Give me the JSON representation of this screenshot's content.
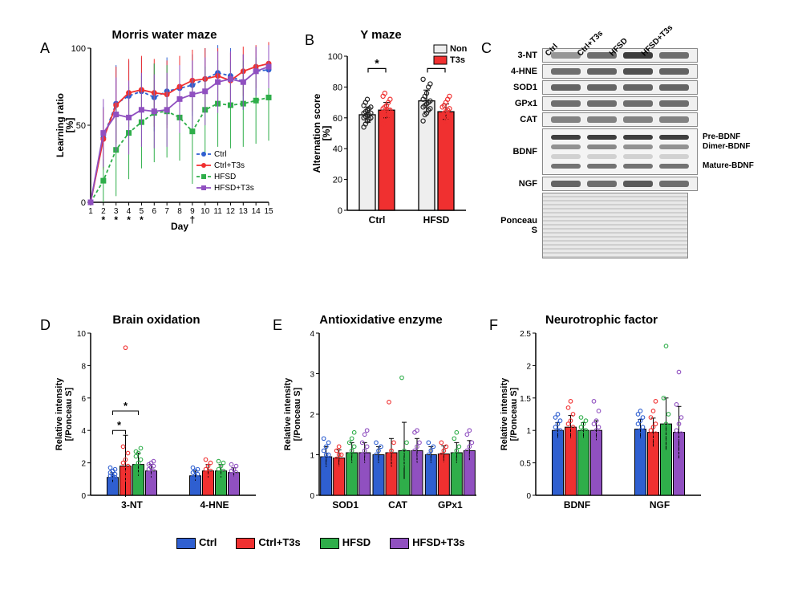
{
  "colors": {
    "Ctrl": "#2f5fd0",
    "Ctrl+T3s": "#f03030",
    "HFSD": "#2fae4a",
    "HFSD+T3s": "#9050c0",
    "Non": "#222222",
    "T3s": "#f03030",
    "axis": "#000000",
    "errorbar": "#000000",
    "grid": "#ffffff"
  },
  "panelA": {
    "label": "A",
    "title": "Morris water maze",
    "xlabel": "Day",
    "ylabel": "Learning ratio\n[%]",
    "xlim": [
      1,
      15
    ],
    "ylim": [
      0,
      100
    ],
    "ytick_step": 50,
    "xticks": [
      1,
      2,
      3,
      4,
      5,
      6,
      7,
      8,
      9,
      10,
      11,
      12,
      13,
      14,
      15
    ],
    "markers": {
      "Ctrl": "circle",
      "Ctrl+T3s": "circle",
      "HFSD": "square",
      "HFSD+T3s": "square"
    },
    "line_dash": {
      "Ctrl": "4,3",
      "Ctrl+T3s": "none",
      "HFSD": "4,3",
      "HFSD+T3s": "none"
    },
    "series": {
      "Ctrl": [
        0,
        42,
        64,
        69,
        72,
        68,
        72,
        74,
        76,
        80,
        84,
        82,
        78,
        85,
        86
      ],
      "Ctrl+T3s": [
        0,
        41,
        63,
        71,
        73,
        71,
        70,
        75,
        79,
        80,
        82,
        79,
        85,
        88,
        90
      ],
      "HFSD": [
        0,
        14,
        34,
        45,
        52,
        58,
        59,
        55,
        46,
        60,
        64,
        63,
        64,
        66,
        68
      ],
      "HFSD+T3s": [
        0,
        45,
        57,
        55,
        60,
        59,
        60,
        67,
        70,
        72,
        78,
        80,
        78,
        85,
        88
      ]
    },
    "err": {
      "Ctrl": [
        0,
        20,
        25,
        23,
        22,
        22,
        22,
        20,
        20,
        20,
        18,
        18,
        18,
        16,
        16
      ],
      "Ctrl+T3s": [
        0,
        20,
        25,
        22,
        22,
        22,
        22,
        20,
        20,
        20,
        18,
        18,
        16,
        14,
        14
      ],
      "HFSD": [
        0,
        14,
        30,
        30,
        30,
        32,
        30,
        28,
        34,
        28,
        28,
        28,
        28,
        28,
        28
      ],
      "HFSD+T3s": [
        0,
        22,
        24,
        24,
        24,
        24,
        24,
        22,
        22,
        22,
        20,
        18,
        18,
        16,
        14
      ]
    },
    "sig_marks": [
      {
        "x": 2,
        "text": "*"
      },
      {
        "x": 3,
        "text": "*"
      },
      {
        "x": 4,
        "text": "*"
      },
      {
        "x": 5,
        "text": "*"
      },
      {
        "x": 9,
        "text": "†"
      }
    ],
    "legend": [
      "Ctrl",
      "Ctrl+T3s",
      "HFSD",
      "HFSD+T3s"
    ]
  },
  "panelB": {
    "label": "B",
    "title": "Y maze",
    "ylabel": "Alternation score\n[%]",
    "ylim": [
      0,
      100
    ],
    "ytick_step": 20,
    "groups": [
      "Ctrl",
      "HFSD"
    ],
    "subgroups": [
      "Non",
      "T3s"
    ],
    "bar_colors": {
      "Non": "#eeeeee",
      "T3s": "#f03030"
    },
    "point_colors": {
      "Non": "#222222",
      "T3s": "#f03030"
    },
    "bar_border": "#000000",
    "values": {
      "Ctrl": {
        "Non": 62,
        "T3s": 65
      },
      "HFSD": {
        "Non": 71,
        "T3s": 64
      }
    },
    "err": {
      "Ctrl": {
        "Non": 5,
        "T3s": 5
      },
      "HFSD": {
        "Non": 7,
        "T3s": 5
      }
    },
    "scatter": {
      "Ctrl": {
        "Non": [
          54,
          56,
          58,
          59,
          60,
          60,
          61,
          62,
          62,
          63,
          63,
          64,
          65,
          66,
          67,
          68,
          70,
          72
        ],
        "T3s": [
          56,
          58,
          60,
          61,
          62,
          63,
          63,
          64,
          65,
          65,
          66,
          67,
          68,
          70,
          72,
          74,
          76
        ]
      },
      "HFSD": {
        "Non": [
          58,
          62,
          63,
          65,
          66,
          67,
          68,
          69,
          70,
          71,
          72,
          74,
          76,
          80,
          82,
          85
        ],
        "T3s": [
          54,
          57,
          58,
          60,
          61,
          62,
          63,
          64,
          65,
          66,
          67,
          68,
          70,
          72,
          74
        ]
      }
    },
    "sig": [
      {
        "from": "Ctrl.Non",
        "to": "Ctrl.T3s",
        "text": "*"
      },
      {
        "from": "HFSD.Non",
        "to": "HFSD.T3s",
        "text": "*"
      }
    ]
  },
  "panelC": {
    "label": "C",
    "lanes": [
      "Ctrl",
      "Ctrl+T3s",
      "HFSD",
      "HFSD+T3s"
    ],
    "rows": [
      {
        "name": "3-NT",
        "intensity": [
          0.35,
          0.55,
          0.8,
          0.55
        ]
      },
      {
        "name": "4-HNE",
        "intensity": [
          0.55,
          0.6,
          0.7,
          0.6
        ]
      },
      {
        "name": "SOD1",
        "intensity": [
          0.6,
          0.6,
          0.6,
          0.6
        ]
      },
      {
        "name": "GPx1",
        "intensity": [
          0.55,
          0.55,
          0.55,
          0.55
        ]
      },
      {
        "name": "CAT",
        "intensity": [
          0.45,
          0.45,
          0.45,
          0.45
        ]
      }
    ],
    "bdnf": {
      "name": "BDNF",
      "bands": [
        {
          "label": "Pre-BDNF",
          "intensity": [
            0.8,
            0.8,
            0.8,
            0.8
          ]
        },
        {
          "label": "Dimer-BDNF",
          "intensity": [
            0.4,
            0.45,
            0.4,
            0.4
          ]
        },
        {
          "label": "",
          "intensity": [
            0.1,
            0.1,
            0.1,
            0.1
          ]
        },
        {
          "label": "Mature-BDNF",
          "intensity": [
            0.55,
            0.55,
            0.55,
            0.55
          ]
        }
      ]
    },
    "ngf": {
      "name": "NGF",
      "intensity": [
        0.6,
        0.55,
        0.65,
        0.55
      ]
    },
    "loading": "Ponceau S"
  },
  "barPanels": {
    "D": {
      "title": "Brain oxidation",
      "ylabel": "Relative intensity\n[/Ponceau S]",
      "ylim": [
        0,
        10
      ],
      "yticks": [
        0,
        2,
        4,
        6,
        8,
        10
      ],
      "groups": [
        "3-NT",
        "4-HNE"
      ],
      "values": {
        "3-NT": {
          "Ctrl": 1.1,
          "Ctrl+T3s": 1.8,
          "HFSD": 1.9,
          "HFSD+T3s": 1.5
        },
        "4-HNE": {
          "Ctrl": 1.2,
          "Ctrl+T3s": 1.5,
          "HFSD": 1.5,
          "HFSD+T3s": 1.4
        }
      },
      "err": {
        "3-NT": {
          "Ctrl": 0.3,
          "Ctrl+T3s": 1.9,
          "HFSD": 0.7,
          "HFSD+T3s": 0.4
        },
        "4-HNE": {
          "Ctrl": 0.3,
          "Ctrl+T3s": 0.4,
          "HFSD": 0.4,
          "HFSD+T3s": 0.3
        }
      },
      "scatter": {
        "3-NT": {
          "Ctrl": [
            0.8,
            0.9,
            1.0,
            1.0,
            1.1,
            1.1,
            1.2,
            1.2,
            1.3,
            1.4,
            1.5,
            1.6,
            1.7
          ],
          "Ctrl+T3s": [
            0.9,
            1.0,
            1.1,
            1.2,
            1.3,
            1.4,
            1.5,
            1.6,
            1.8,
            2.0,
            2.2,
            2.6,
            3.0,
            9.1
          ],
          "HFSD": [
            1.1,
            1.2,
            1.3,
            1.4,
            1.5,
            1.6,
            1.8,
            2.0,
            2.2,
            2.4,
            2.6,
            2.9,
            2.7
          ],
          "HFSD+T3s": [
            1.0,
            1.1,
            1.2,
            1.3,
            1.4,
            1.5,
            1.6,
            1.7,
            1.8,
            1.9,
            2.0,
            2.1
          ]
        },
        "4-HNE": {
          "Ctrl": [
            0.8,
            0.9,
            1.0,
            1.1,
            1.2,
            1.3,
            1.4,
            1.5,
            1.6,
            1.7
          ],
          "Ctrl+T3s": [
            1.0,
            1.1,
            1.2,
            1.3,
            1.4,
            1.5,
            1.6,
            1.8,
            2.0,
            2.2
          ],
          "HFSD": [
            1.0,
            1.1,
            1.2,
            1.3,
            1.4,
            1.5,
            1.6,
            1.8,
            2.0,
            2.1
          ],
          "HFSD+T3s": [
            0.9,
            1.0,
            1.1,
            1.2,
            1.3,
            1.4,
            1.5,
            1.6,
            1.8,
            1.9
          ]
        }
      },
      "sig": [
        {
          "group": "3-NT",
          "from": "Ctrl",
          "to": "Ctrl+T3s",
          "text": "*",
          "y": 4.0
        },
        {
          "group": "3-NT",
          "from": "Ctrl",
          "to": "HFSD",
          "text": "*",
          "y": 5.2
        }
      ]
    },
    "E": {
      "title": "Antioxidative enzyme",
      "ylabel": "Relative intensity\n[/Ponceau S]",
      "ylim": [
        0,
        4
      ],
      "yticks": [
        0,
        1,
        2,
        3,
        4
      ],
      "groups": [
        "SOD1",
        "CAT",
        "GPx1"
      ],
      "values": {
        "SOD1": {
          "Ctrl": 0.95,
          "Ctrl+T3s": 0.92,
          "HFSD": 1.05,
          "HFSD+T3s": 1.05
        },
        "CAT": {
          "Ctrl": 1.0,
          "Ctrl+T3s": 1.05,
          "HFSD": 1.1,
          "HFSD+T3s": 1.1
        },
        "GPx1": {
          "Ctrl": 1.0,
          "Ctrl+T3s": 1.02,
          "HFSD": 1.05,
          "HFSD+T3s": 1.1
        }
      },
      "err": {
        "SOD1": {
          "Ctrl": 0.25,
          "Ctrl+T3s": 0.2,
          "HFSD": 0.25,
          "HFSD+T3s": 0.25
        },
        "CAT": {
          "Ctrl": 0.2,
          "Ctrl+T3s": 0.35,
          "HFSD": 0.7,
          "HFSD+T3s": 0.3
        },
        "GPx1": {
          "Ctrl": 0.2,
          "Ctrl+T3s": 0.2,
          "HFSD": 0.25,
          "HFSD+T3s": 0.25
        }
      },
      "scatter": {
        "SOD1": {
          "Ctrl": [
            0.6,
            0.7,
            0.8,
            0.9,
            1.0,
            1.0,
            1.1,
            1.2,
            1.3,
            1.4
          ],
          "Ctrl+T3s": [
            0.6,
            0.7,
            0.8,
            0.9,
            1.0,
            1.0,
            1.1,
            1.2
          ],
          "HFSD": [
            0.7,
            0.8,
            0.9,
            1.0,
            1.1,
            1.2,
            1.3,
            1.4,
            1.55
          ],
          "HFSD+T3s": [
            0.7,
            0.8,
            0.9,
            1.0,
            1.1,
            1.2,
            1.3,
            1.5,
            1.6
          ]
        },
        "CAT": {
          "Ctrl": [
            0.7,
            0.8,
            0.9,
            1.0,
            1.1,
            1.2,
            1.3
          ],
          "Ctrl+T3s": [
            0.7,
            0.8,
            0.9,
            1.0,
            1.1,
            1.3,
            2.3
          ],
          "HFSD": [
            0.7,
            0.8,
            0.9,
            1.0,
            1.1,
            1.3,
            2.9
          ],
          "HFSD+T3s": [
            0.8,
            0.9,
            1.0,
            1.1,
            1.2,
            1.3,
            1.55,
            1.6
          ]
        },
        "GPx1": {
          "Ctrl": [
            0.7,
            0.8,
            0.9,
            1.0,
            1.1,
            1.2,
            1.3
          ],
          "Ctrl+T3s": [
            0.7,
            0.8,
            0.9,
            1.0,
            1.1,
            1.2,
            1.3
          ],
          "HFSD": [
            0.7,
            0.8,
            0.9,
            1.0,
            1.1,
            1.2,
            1.4,
            1.55
          ],
          "HFSD+T3s": [
            0.8,
            0.9,
            1.0,
            1.1,
            1.2,
            1.3,
            1.5,
            1.6
          ]
        }
      },
      "sig": []
    },
    "F": {
      "title": "Neurotrophic factor",
      "ylabel": "Relative intensity\n[/Ponceau S]",
      "ylim": [
        0,
        2.5
      ],
      "yticks": [
        0,
        0.5,
        1.0,
        1.5,
        2.0,
        2.5
      ],
      "groups": [
        "BDNF",
        "NGF"
      ],
      "values": {
        "BDNF": {
          "Ctrl": 1.0,
          "Ctrl+T3s": 1.05,
          "HFSD": 1.0,
          "HFSD+T3s": 1.0
        },
        "NGF": {
          "Ctrl": 1.02,
          "Ctrl+T3s": 0.97,
          "HFSD": 1.1,
          "HFSD+T3s": 0.97
        }
      },
      "err": {
        "BDNF": {
          "Ctrl": 0.12,
          "Ctrl+T3s": 0.18,
          "HFSD": 0.12,
          "HFSD+T3s": 0.15
        },
        "NGF": {
          "Ctrl": 0.15,
          "Ctrl+T3s": 0.22,
          "HFSD": 0.4,
          "HFSD+T3s": 0.4
        }
      },
      "scatter": {
        "BDNF": {
          "Ctrl": [
            0.8,
            0.85,
            0.9,
            0.95,
            1.0,
            1.0,
            1.05,
            1.1,
            1.15,
            1.2,
            1.25
          ],
          "Ctrl+T3s": [
            0.75,
            0.85,
            0.9,
            0.95,
            1.0,
            1.05,
            1.1,
            1.15,
            1.25,
            1.35,
            1.45
          ],
          "HFSD": [
            0.8,
            0.85,
            0.9,
            0.95,
            1.0,
            1.0,
            1.05,
            1.1,
            1.15,
            1.2
          ],
          "HFSD+T3s": [
            0.75,
            0.85,
            0.9,
            0.95,
            1.0,
            1.05,
            1.1,
            1.15,
            1.3,
            1.45
          ]
        },
        "NGF": {
          "Ctrl": [
            0.8,
            0.85,
            0.9,
            0.95,
            1.0,
            1.05,
            1.1,
            1.15,
            1.2,
            1.25,
            1.3
          ],
          "Ctrl+T3s": [
            0.55,
            0.7,
            0.8,
            0.85,
            0.9,
            0.95,
            1.0,
            1.05,
            1.1,
            1.2,
            1.3,
            1.45
          ],
          "HFSD": [
            0.7,
            0.8,
            0.85,
            0.9,
            0.95,
            1.0,
            1.05,
            1.1,
            1.25,
            1.5,
            2.3
          ],
          "HFSD+T3s": [
            0.5,
            0.65,
            0.75,
            0.85,
            0.9,
            0.95,
            1.0,
            1.1,
            1.2,
            1.4,
            1.9
          ]
        }
      },
      "sig": []
    }
  },
  "legend_bottom": [
    "Ctrl",
    "Ctrl+T3s",
    "HFSD",
    "HFSD+T3s"
  ]
}
